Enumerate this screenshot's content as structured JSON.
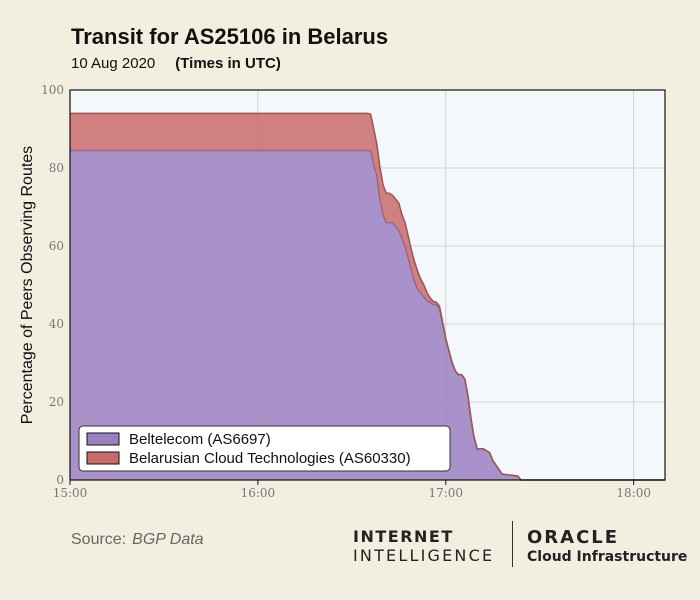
{
  "header": {
    "title": "Transit for AS25106 in Belarus",
    "date": "10 Aug 2020",
    "timezone": "(Times in UTC)"
  },
  "footer": {
    "source_label": "Source:",
    "source_value": "BGP Data",
    "ii_line1": "INTERNET",
    "ii_line2": "INTELLIGENCE",
    "oracle_line1": "ORACLE",
    "oracle_line2": "Cloud Infrastructure"
  },
  "chart_data": {
    "type": "area",
    "stacked": true,
    "title": "Transit for AS25106 in Belarus",
    "subtitle": "10 Aug 2020",
    "xlabel": "",
    "ylabel": "Percentage of Peers Observing Routes",
    "xlim": [
      "15:00",
      "18:10"
    ],
    "ylim": [
      0,
      100
    ],
    "x_ticks": [
      "15:00",
      "16:00",
      "17:00",
      "18:00"
    ],
    "y_ticks": [
      0,
      20,
      40,
      60,
      80,
      100
    ],
    "grid": true,
    "legend_position": "bottom-left",
    "x": [
      "15:00",
      "15:30",
      "16:00",
      "16:30",
      "16:35",
      "16:36",
      "16:37",
      "16:38",
      "16:39",
      "16:40",
      "16:41",
      "16:42",
      "16:43",
      "16:44",
      "16:45",
      "16:46",
      "16:47",
      "16:48",
      "16:49",
      "16:50",
      "16:51",
      "16:52",
      "16:53",
      "16:54",
      "16:55",
      "16:56",
      "16:57",
      "16:58",
      "16:59",
      "17:00",
      "17:01",
      "17:02",
      "17:03",
      "17:04",
      "17:05",
      "17:06",
      "17:07",
      "17:08",
      "17:09",
      "17:10",
      "17:11",
      "17:12",
      "17:13",
      "17:14",
      "17:15",
      "17:18",
      "17:21",
      "17:23",
      "17:24",
      "18:10"
    ],
    "series": [
      {
        "name": "Beltelecom (AS6697)",
        "color": "#9b7fbf",
        "values": [
          84.5,
          84.5,
          84.5,
          84.5,
          84.5,
          84.5,
          81,
          78,
          72,
          68,
          66,
          66,
          66,
          65,
          64,
          62,
          60,
          57,
          54,
          51,
          49,
          48,
          47,
          46,
          45.5,
          45,
          45,
          44,
          40,
          36,
          33,
          30,
          28,
          27,
          27,
          26,
          22,
          16,
          11,
          8,
          8,
          8,
          7.5,
          7,
          5,
          1.5,
          1.2,
          1,
          0,
          0
        ]
      },
      {
        "name": "Belarusian Cloud Technologies (AS60330)",
        "color": "#c96b6b",
        "values": [
          9.5,
          9.5,
          9.5,
          9.5,
          9.5,
          9.3,
          9,
          8,
          8,
          7.5,
          7.5,
          7.5,
          7,
          7,
          7,
          6,
          6,
          5.5,
          5,
          5,
          4.5,
          3.5,
          3,
          2,
          1.2,
          0.8,
          0.6,
          0.5,
          0.4,
          0.3,
          0.2,
          0.2,
          0.1,
          0,
          0,
          0,
          0,
          0,
          0,
          0,
          0,
          0,
          0,
          0,
          0,
          0,
          0,
          0,
          0,
          0
        ]
      }
    ]
  },
  "colors": {
    "background": "#f2efe0",
    "plot_background": "#f5f8fb",
    "grid": "#c9c9c9"
  }
}
